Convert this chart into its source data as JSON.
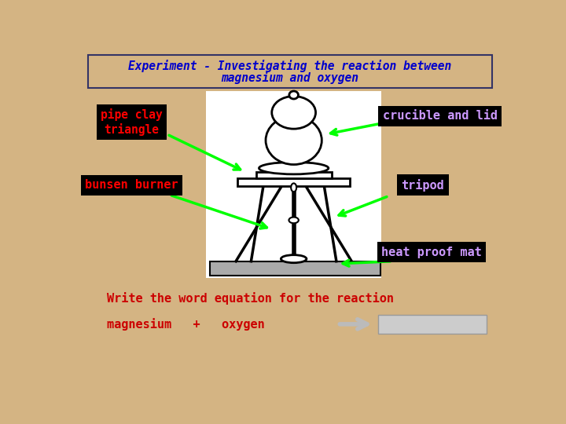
{
  "bg_color": "#D4B483",
  "title_line1": "Experiment - Investigating the reaction between",
  "title_line2": "magnesium and oxygen",
  "title_color": "#0000CC",
  "title_box_edge": "#333366",
  "labels": {
    "pipe_clay": "pipe clay\ntriangle",
    "crucible": "crucible and lid",
    "bunsen": "bunsen burner",
    "tripod": "tripod",
    "heat": "heat proof mat"
  },
  "label_bg": "#000000",
  "label_text_color_red": "#FF0000",
  "label_text_color_purple": "#CC99FF",
  "arrow_color": "#00FF00",
  "equation_text": "Write the word equation for the reaction",
  "equation_text_color": "#CC0000",
  "eq_left": "magnesium   +   oxygen",
  "eq_text_color": "#CC0000",
  "answer_box_color": "#CCCCCC",
  "answer_box_edge": "#999999",
  "white_area": "#FFFFFF",
  "mat_color": "#AAAAAA",
  "black": "#000000"
}
